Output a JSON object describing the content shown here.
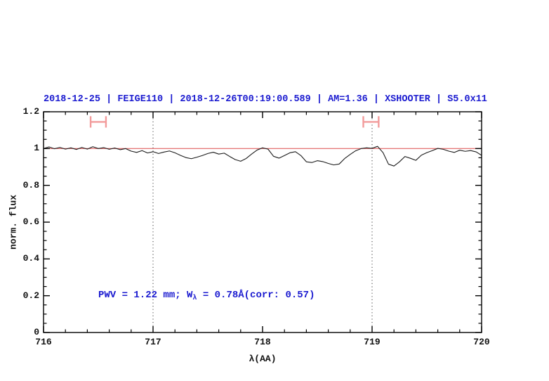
{
  "title": {
    "text": "2018-12-25 | FEIGE110 | 2018-12-26T00:19:00.589 | AM=1.36 | XSHOOTER | S5.0x11",
    "color": "#1b1bd0"
  },
  "annotation": {
    "prefix": "PWV = 1.22 mm; W",
    "sub": "λ",
    "suffix": " = 0.78Å(corr: 0.57)",
    "color": "#1b1bd0"
  },
  "chart_data": {
    "type": "line",
    "title": "2018-12-25 | FEIGE110 | 2018-12-26T00:19:00.589 | AM=1.36 | XSHOOTER | S5.0x11",
    "xlabel": "λ(AA)",
    "ylabel": "norm. flux",
    "xlim": [
      716,
      720
    ],
    "ylim": [
      0,
      1.2
    ],
    "grid": false,
    "x_major_ticks": [
      716,
      717,
      718,
      719,
      720
    ],
    "x_tick_labels": [
      "716",
      "717",
      "718",
      "719",
      "720"
    ],
    "x_minor_step": 0.2,
    "y_major_ticks": [
      0,
      0.2,
      0.4,
      0.6,
      0.8,
      1,
      1.2
    ],
    "y_tick_labels": [
      "0",
      "0.2",
      "0.4",
      "0.6",
      "0.8",
      "1",
      "1.2"
    ],
    "y_minor_step": 0.05,
    "axis_color": "#000000",
    "background": "#ffffff",
    "reference_line": {
      "y": 1.0,
      "color": "#e06060"
    },
    "dotted_vlines": {
      "x": [
        717,
        719
      ],
      "color": "#3a3a3a"
    },
    "range_markers": {
      "color": "#f29b9b",
      "items": [
        {
          "x1": 716.43,
          "x2": 716.57,
          "y": 1.145,
          "y_half_height": 0.031
        },
        {
          "x1": 718.92,
          "x2": 719.06,
          "y": 1.145,
          "y_half_height": 0.031
        }
      ]
    },
    "series": [
      {
        "name": "normalized spectrum",
        "color": "#1c1c1c",
        "points": [
          [
            716.0,
            1.0
          ],
          [
            716.05,
            1.009
          ],
          [
            716.1,
            0.999
          ],
          [
            716.15,
            1.006
          ],
          [
            716.2,
            0.997
          ],
          [
            716.25,
            1.004
          ],
          [
            716.3,
            0.995
          ],
          [
            716.35,
            1.006
          ],
          [
            716.4,
            0.997
          ],
          [
            716.45,
            1.01
          ],
          [
            716.5,
            1.0
          ],
          [
            716.55,
            1.005
          ],
          [
            716.6,
            0.996
          ],
          [
            716.65,
            1.003
          ],
          [
            716.7,
            0.994
          ],
          [
            716.75,
            1.0
          ],
          [
            716.8,
            0.986
          ],
          [
            716.85,
            0.979
          ],
          [
            716.9,
            0.989
          ],
          [
            716.95,
            0.976
          ],
          [
            717.0,
            0.983
          ],
          [
            717.05,
            0.973
          ],
          [
            717.1,
            0.981
          ],
          [
            717.15,
            0.987
          ],
          [
            717.2,
            0.977
          ],
          [
            717.25,
            0.963
          ],
          [
            717.3,
            0.951
          ],
          [
            717.35,
            0.945
          ],
          [
            717.4,
            0.953
          ],
          [
            717.45,
            0.962
          ],
          [
            717.5,
            0.973
          ],
          [
            717.55,
            0.98
          ],
          [
            717.6,
            0.97
          ],
          [
            717.65,
            0.975
          ],
          [
            717.7,
            0.957
          ],
          [
            717.75,
            0.94
          ],
          [
            717.8,
            0.931
          ],
          [
            717.85,
            0.946
          ],
          [
            717.9,
            0.97
          ],
          [
            717.95,
            0.992
          ],
          [
            718.0,
            1.004
          ],
          [
            718.05,
            0.997
          ],
          [
            718.1,
            0.958
          ],
          [
            718.15,
            0.948
          ],
          [
            718.2,
            0.962
          ],
          [
            718.25,
            0.977
          ],
          [
            718.3,
            0.983
          ],
          [
            718.35,
            0.962
          ],
          [
            718.4,
            0.928
          ],
          [
            718.45,
            0.924
          ],
          [
            718.5,
            0.934
          ],
          [
            718.55,
            0.929
          ],
          [
            718.6,
            0.919
          ],
          [
            718.65,
            0.911
          ],
          [
            718.7,
            0.916
          ],
          [
            718.75,
            0.946
          ],
          [
            718.8,
            0.968
          ],
          [
            718.85,
            0.988
          ],
          [
            718.9,
            1.0
          ],
          [
            718.95,
            1.004
          ],
          [
            719.0,
            1.001
          ],
          [
            719.05,
            1.012
          ],
          [
            719.1,
            0.978
          ],
          [
            719.15,
            0.915
          ],
          [
            719.2,
            0.905
          ],
          [
            719.25,
            0.928
          ],
          [
            719.3,
            0.957
          ],
          [
            719.35,
            0.947
          ],
          [
            719.4,
            0.936
          ],
          [
            719.45,
            0.964
          ],
          [
            719.5,
            0.978
          ],
          [
            719.55,
            0.989
          ],
          [
            719.6,
            1.001
          ],
          [
            719.65,
            0.996
          ],
          [
            719.7,
            0.986
          ],
          [
            719.75,
            0.979
          ],
          [
            719.8,
            0.991
          ],
          [
            719.85,
            0.985
          ],
          [
            719.9,
            0.989
          ],
          [
            719.95,
            0.982
          ],
          [
            720.0,
            0.963
          ]
        ]
      }
    ],
    "annotation": {
      "text": "PWV = 1.22 mm; Wλ = 0.78Å(corr: 0.57)",
      "x": 716.5,
      "y": 0.2
    }
  }
}
